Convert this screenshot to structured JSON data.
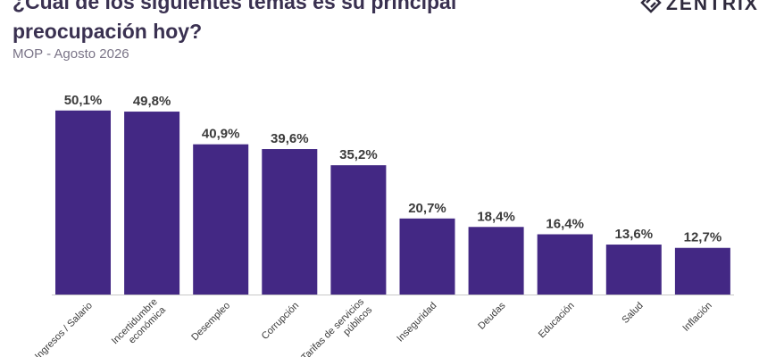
{
  "header": {
    "title": "¿Cuál de los siguientes temas es su principal\npreocupación hoy?",
    "subtitle": "MOP - Agosto 2026",
    "logo_text": "ZENTRIX",
    "logo_icon": "zentrix-logo-icon"
  },
  "colors": {
    "bar": "#432884",
    "title": "#3a3151",
    "axis": "#c8c8c8"
  },
  "chart_data": {
    "type": "bar",
    "title": "¿Cuál de los siguientes temas es su principal preocupación hoy?",
    "subtitle": "MOP - Agosto 2026",
    "categories": [
      [
        "Ingresos / Salario"
      ],
      [
        "Incertidumbre",
        "económica"
      ],
      [
        "Desempleo"
      ],
      [
        "Corrupción"
      ],
      [
        "Tarifas de servicios",
        "públicos"
      ],
      [
        "Inseguridad"
      ],
      [
        "Deudas"
      ],
      [
        "Educación"
      ],
      [
        "Salud"
      ],
      [
        "Inflación"
      ]
    ],
    "values": [
      50.1,
      49.8,
      40.9,
      39.6,
      35.2,
      20.7,
      18.4,
      16.4,
      13.6,
      12.7
    ],
    "value_labels": [
      "50,1%",
      "49,8%",
      "40,9%",
      "39,6%",
      "35,2%",
      "20,7%",
      "18,4%",
      "16,4%",
      "13,6%",
      "12,7%"
    ],
    "ylim": [
      0,
      52
    ],
    "grid": false,
    "legend": "none"
  }
}
